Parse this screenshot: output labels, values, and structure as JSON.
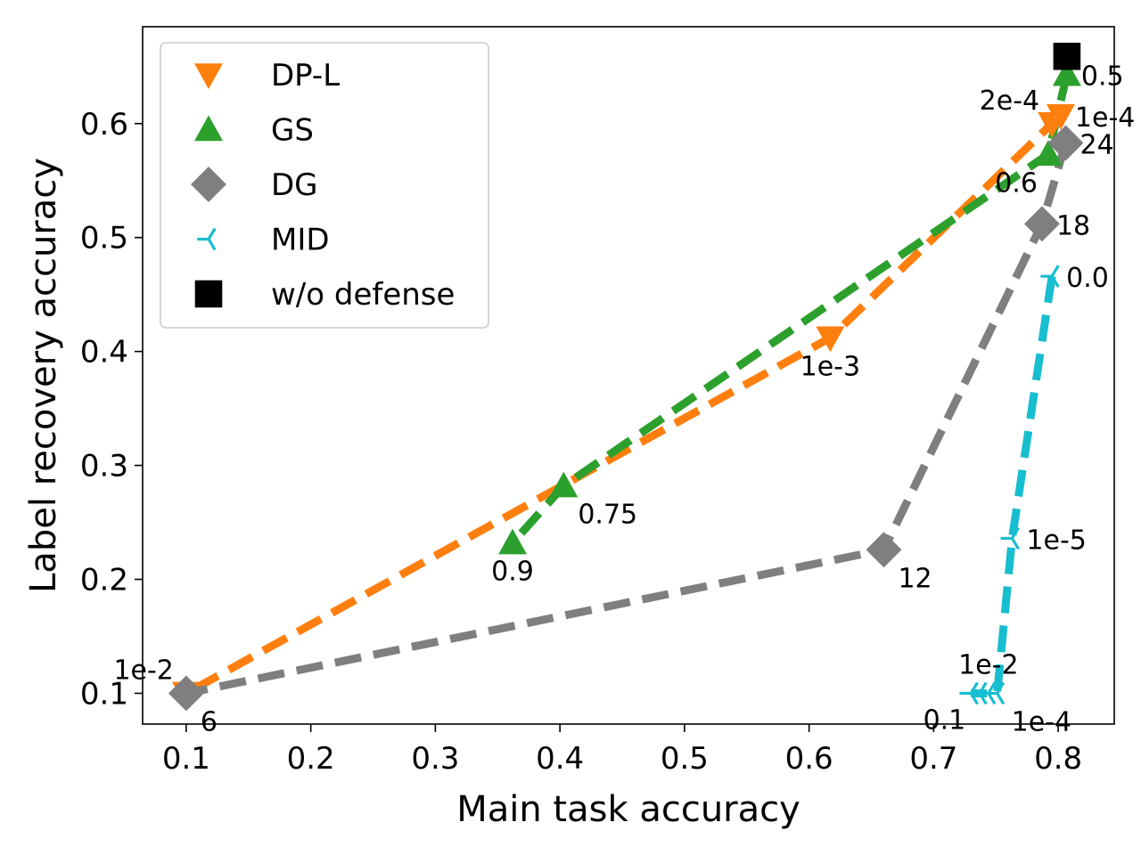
{
  "chart_data": {
    "type": "line",
    "title": "",
    "xlabel": "Main task accuracy",
    "ylabel": "Label recovery accuracy",
    "xlim": [
      0.065,
      0.845
    ],
    "ylim": [
      0.073,
      0.685
    ],
    "xticks": [
      0.1,
      0.2,
      0.3,
      0.4,
      0.5,
      0.6,
      0.7,
      0.8
    ],
    "xtick_labels": [
      "0.1",
      "0.2",
      "0.3",
      "0.4",
      "0.5",
      "0.6",
      "0.7",
      "0.8"
    ],
    "yticks": [
      0.1,
      0.2,
      0.3,
      0.4,
      0.5,
      0.6
    ],
    "ytick_labels": [
      "0.1",
      "0.2",
      "0.3",
      "0.4",
      "0.5",
      "0.6"
    ],
    "grid": false,
    "legend_position": "top-left",
    "series": [
      {
        "name": "DP-L",
        "color": "#ff7f0e",
        "marker": "triangle-down",
        "linestyle": "dashed",
        "points": [
          {
            "x": 0.802,
            "y": 0.607,
            "label": "1e-4",
            "label_pos": "right"
          },
          {
            "x": 0.795,
            "y": 0.6,
            "label": "2e-4",
            "label_pos": "upper-left"
          },
          {
            "x": 0.617,
            "y": 0.412,
            "label": "1e-3",
            "label_pos": "below"
          },
          {
            "x": 0.1,
            "y": 0.1,
            "label": "1e-2",
            "label_pos": "upper-left"
          }
        ]
      },
      {
        "name": "GS",
        "color": "#2ca02c",
        "marker": "triangle-up",
        "linestyle": "dashed",
        "points": [
          {
            "x": 0.807,
            "y": 0.643,
            "label": "0.5",
            "label_pos": "right"
          },
          {
            "x": 0.792,
            "y": 0.573,
            "label": "0.6",
            "label_pos": "lower-left"
          },
          {
            "x": 0.403,
            "y": 0.282,
            "label": "0.75",
            "label_pos": "below-right"
          },
          {
            "x": 0.362,
            "y": 0.232,
            "label": "0.9",
            "label_pos": "below"
          }
        ]
      },
      {
        "name": "DG",
        "color": "#7f7f7f",
        "marker": "diamond",
        "linestyle": "dashed",
        "points": [
          {
            "x": 0.806,
            "y": 0.583,
            "label": "24",
            "label_pos": "right"
          },
          {
            "x": 0.787,
            "y": 0.512,
            "label": "18",
            "label_pos": "right"
          },
          {
            "x": 0.66,
            "y": 0.226,
            "label": "12",
            "label_pos": "below-right"
          },
          {
            "x": 0.1,
            "y": 0.1,
            "label": "6",
            "label_pos": "below-right"
          }
        ]
      },
      {
        "name": "MID",
        "color": "#17becf",
        "marker": "tri-left",
        "linestyle": "dashed",
        "points": [
          {
            "x": 0.795,
            "y": 0.466,
            "label": "0.0",
            "label_pos": "right"
          },
          {
            "x": 0.763,
            "y": 0.236,
            "label": "1e-5",
            "label_pos": "right"
          },
          {
            "x": 0.751,
            "y": 0.1,
            "label": "1e-4",
            "label_pos": "below-right"
          },
          {
            "x": 0.744,
            "y": 0.1,
            "label": "1e-2",
            "label_pos": "above"
          },
          {
            "x": 0.737,
            "y": 0.1,
            "label": "",
            "label_pos": "none"
          },
          {
            "x": 0.73,
            "y": 0.1,
            "label": "0.1",
            "label_pos": "below-left"
          }
        ]
      },
      {
        "name": "w/o defense",
        "color": "#000000",
        "marker": "square",
        "linestyle": "none",
        "points": [
          {
            "x": 0.807,
            "y": 0.659,
            "label": "",
            "label_pos": "none"
          }
        ]
      }
    ]
  }
}
